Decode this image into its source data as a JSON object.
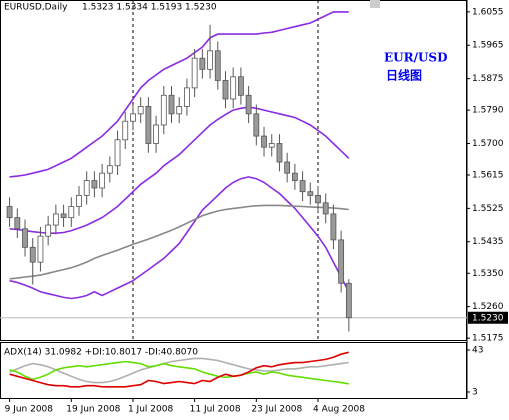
{
  "chart_data": [
    {
      "type": "candlestick",
      "title": "EURUSD,Daily",
      "subtitle": "1.5323 1.5334 1.5193 1.5230",
      "annotations": [
        "EUR/USD",
        "日线图"
      ],
      "ylim": [
        1.517,
        1.6087
      ],
      "yticks": [
        1.5175,
        {
          "value": 1.526,
          "label": "1.5260"
        },
        {
          "value": 1.535,
          "label": "1.5350"
        },
        1.5435,
        1.5525,
        1.5615,
        {
          "value": 1.57,
          "label": "1.5700"
        },
        {
          "value": 1.579,
          "label": "1.5790"
        },
        1.5875,
        1.5965,
        1.6055
      ],
      "last": {
        "value": 1.523,
        "label": "1.5230"
      },
      "bull_color": "#ffffff",
      "bear_color": "#9a9a9a",
      "edge_color": "#555555",
      "open": [
        1.553,
        1.55,
        1.547,
        1.542,
        1.538,
        1.545,
        1.548,
        1.551,
        1.55,
        1.553,
        1.556,
        1.56,
        1.558,
        1.562,
        1.564,
        1.571,
        1.576,
        1.578,
        1.58,
        1.57,
        1.575,
        1.583,
        1.578,
        1.58,
        1.585,
        1.593,
        1.59,
        1.595,
        1.587,
        1.582,
        1.588,
        1.583,
        1.578,
        1.572,
        1.569,
        1.57,
        1.565,
        1.562,
        1.56,
        1.557,
        1.556,
        1.554,
        1.551,
        1.544,
        1.5323
      ],
      "high": [
        1.5555,
        1.5525,
        1.5495,
        1.5445,
        1.5475,
        1.5505,
        1.5535,
        1.5535,
        1.5555,
        1.5585,
        1.5625,
        1.5625,
        1.5645,
        1.5665,
        1.5735,
        1.5785,
        1.5805,
        1.5825,
        1.5825,
        1.5775,
        1.5855,
        1.5855,
        1.5825,
        1.5875,
        1.5955,
        1.5955,
        1.602,
        1.5975,
        1.5895,
        1.5905,
        1.5905,
        1.5855,
        1.5805,
        1.5745,
        1.5725,
        1.5725,
        1.5675,
        1.5645,
        1.5625,
        1.5595,
        1.5585,
        1.5565,
        1.5535,
        1.5465,
        1.5334
      ],
      "low": [
        1.5475,
        1.5445,
        1.5395,
        1.532,
        1.5355,
        1.5425,
        1.5455,
        1.5475,
        1.5475,
        1.5505,
        1.5535,
        1.5555,
        1.5555,
        1.5595,
        1.5615,
        1.5685,
        1.5735,
        1.5755,
        1.5675,
        1.5675,
        1.5725,
        1.5755,
        1.5755,
        1.5775,
        1.5825,
        1.5875,
        1.5875,
        1.5845,
        1.5795,
        1.5795,
        1.5805,
        1.5755,
        1.5695,
        1.5665,
        1.5665,
        1.5625,
        1.5595,
        1.5575,
        1.5545,
        1.5535,
        1.5515,
        1.5485,
        1.5415,
        1.5298,
        1.5193
      ],
      "close": [
        1.55,
        1.547,
        1.542,
        1.538,
        1.545,
        1.548,
        1.551,
        1.55,
        1.553,
        1.556,
        1.56,
        1.558,
        1.562,
        1.564,
        1.571,
        1.576,
        1.578,
        1.58,
        1.57,
        1.575,
        1.583,
        1.578,
        1.58,
        1.585,
        1.593,
        1.59,
        1.595,
        1.587,
        1.582,
        1.588,
        1.583,
        1.578,
        1.572,
        1.569,
        1.57,
        1.565,
        1.562,
        1.56,
        1.557,
        1.556,
        1.554,
        1.551,
        1.544,
        1.5323,
        1.523
      ],
      "series": [
        {
          "color": "#8a2be2",
          "values": [
            1.561,
            1.5612,
            1.5615,
            1.562,
            1.5625,
            1.563,
            1.564,
            1.565,
            1.566,
            1.5675,
            1.569,
            1.5705,
            1.572,
            1.574,
            1.576,
            1.579,
            1.582,
            1.585,
            1.587,
            1.5885,
            1.59,
            1.591,
            1.592,
            1.593,
            1.5945,
            1.596,
            1.5985,
            1.5995,
            1.5995,
            1.5995,
            1.5995,
            1.5995,
            1.5995,
            1.5998,
            1.6,
            1.6005,
            1.601,
            1.6015,
            1.602,
            1.6025,
            1.6035,
            1.6045,
            1.6055,
            1.6055,
            1.6055
          ]
        },
        {
          "color": "#8a2be2",
          "values": [
            1.547,
            1.5468,
            1.5465,
            1.5462,
            1.546,
            1.5458,
            1.5458,
            1.546,
            1.5465,
            1.5472,
            1.548,
            1.549,
            1.55,
            1.5515,
            1.553,
            1.555,
            1.557,
            1.559,
            1.5605,
            1.562,
            1.564,
            1.5655,
            1.567,
            1.569,
            1.571,
            1.573,
            1.575,
            1.5765,
            1.5778,
            1.579,
            1.5795,
            1.5798,
            1.5795,
            1.579,
            1.5785,
            1.578,
            1.5775,
            1.577,
            1.576,
            1.575,
            1.5735,
            1.572,
            1.57,
            1.568,
            1.566
          ]
        },
        {
          "color": "#8a2be2",
          "values": [
            1.533,
            1.5325,
            1.5318,
            1.531,
            1.53,
            1.5295,
            1.529,
            1.5285,
            1.5282,
            1.5285,
            1.529,
            1.53,
            1.529,
            1.53,
            1.531,
            1.532,
            1.533,
            1.5345,
            1.536,
            1.5375,
            1.539,
            1.541,
            1.543,
            1.546,
            1.549,
            1.552,
            1.554,
            1.556,
            1.558,
            1.5595,
            1.5605,
            1.561,
            1.5605,
            1.5595,
            1.558,
            1.5565,
            1.5545,
            1.5525,
            1.55,
            1.5475,
            1.545,
            1.542,
            1.538,
            1.534,
            1.53
          ]
        },
        {
          "color": "#888888",
          "values": [
            1.5335,
            1.5337,
            1.534,
            1.5342,
            1.5345,
            1.535,
            1.5355,
            1.536,
            1.5365,
            1.5372,
            1.538,
            1.539,
            1.5398,
            1.5405,
            1.5412,
            1.542,
            1.5428,
            1.5435,
            1.5442,
            1.545,
            1.5458,
            1.5466,
            1.5475,
            1.5485,
            1.5495,
            1.5505,
            1.5512,
            1.5518,
            1.5522,
            1.5525,
            1.5527,
            1.553,
            1.5532,
            1.5533,
            1.5533,
            1.5533,
            1.5532,
            1.5531,
            1.553,
            1.5529,
            1.5528,
            1.5527,
            1.5526,
            1.5524,
            1.5522
          ]
        }
      ]
    },
    {
      "type": "line",
      "title": "ADX(14) 31.0982 +DI:10.8017 -DI:40.8070",
      "categories": [
        "9 Jun 2008",
        null,
        null,
        null,
        null,
        null,
        null,
        null,
        "19 Jun 2008",
        null,
        null,
        null,
        null,
        null,
        null,
        null,
        "1 Jul 2008",
        null,
        null,
        null,
        null,
        null,
        null,
        null,
        "11 Jul 2008",
        null,
        null,
        null,
        null,
        null,
        null,
        null,
        "23 Jul 2008",
        null,
        null,
        null,
        null,
        null,
        null,
        null,
        "4 Aug 2008",
        null,
        null,
        null,
        null
      ],
      "ylim": [
        -2.7,
        50.6
      ],
      "yticks": [
        3,
        43
      ],
      "series": [
        {
          "color": "#b0b0b0",
          "values": [
            22,
            25,
            28,
            30,
            29,
            27,
            24,
            21,
            18,
            15,
            13,
            12,
            12,
            13,
            15,
            18,
            21,
            24,
            26,
            28,
            30,
            32,
            33,
            34,
            35,
            35,
            34,
            33,
            31,
            29,
            27,
            25,
            24,
            23,
            23,
            24,
            25,
            25,
            26,
            27,
            27,
            28,
            29,
            30,
            31.0982
          ]
        },
        {
          "color": "#66dd00",
          "values": [
            24,
            22,
            18,
            15,
            17,
            20,
            24,
            26,
            27,
            28,
            27,
            28,
            29,
            30,
            31,
            32,
            31,
            30,
            27,
            28,
            30,
            28,
            27,
            26,
            25,
            22,
            20,
            18,
            17,
            18,
            19,
            21,
            22,
            20,
            22,
            21,
            19,
            18,
            17,
            16,
            15,
            14,
            13,
            12,
            10.8017
          ]
        },
        {
          "color": "#dd0000",
          "values": [
            20,
            18,
            16,
            14,
            12,
            10,
            9,
            9,
            8,
            8,
            9,
            9,
            8,
            8,
            8,
            8,
            9,
            10,
            14,
            13,
            11,
            12,
            13,
            12,
            11,
            14,
            13,
            17,
            20,
            18,
            19,
            22,
            26,
            28,
            27,
            29,
            30,
            31,
            31,
            32,
            33,
            34,
            36,
            39,
            40.807
          ]
        }
      ]
    }
  ]
}
